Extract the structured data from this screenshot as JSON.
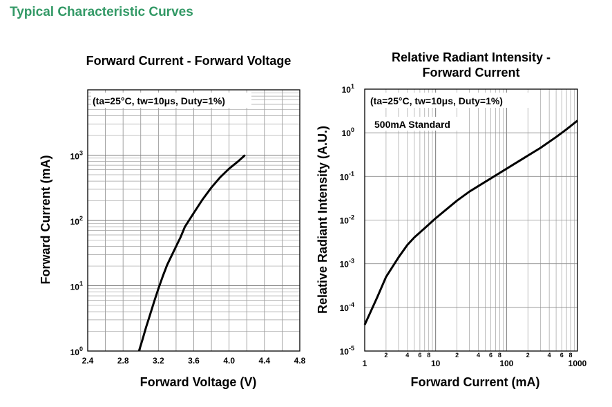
{
  "page": {
    "heading": "Typical Characteristic Curves"
  },
  "chart_data": [
    {
      "type": "line",
      "title": "Forward Current - Forward Voltage",
      "xlabel": "Forward Voltage (V)",
      "ylabel": "Forward Current (mA)",
      "xscale": "linear",
      "yscale": "log",
      "xlim": [
        2.4,
        4.8
      ],
      "ylim": [
        1,
        10000
      ],
      "xticks": [
        "2.4",
        "2.8",
        "3.2",
        "3.6",
        "4.0",
        "4.4",
        "4.8"
      ],
      "yticks": [
        {
          "base": "10",
          "exp": "0",
          "value": 1
        },
        {
          "base": "10",
          "exp": "1",
          "value": 10
        },
        {
          "base": "10",
          "exp": "2",
          "value": 100
        },
        {
          "base": "10",
          "exp": "3",
          "value": 1000
        }
      ],
      "grid": true,
      "annotation": "(ta=25°C, tw=10μs, Duty=1%)",
      "series": [
        {
          "points": [
            [
              2.98,
              1
            ],
            [
              3.02,
              1.5
            ],
            [
              3.06,
              2.3
            ],
            [
              3.1,
              3.4
            ],
            [
              3.15,
              5.6
            ],
            [
              3.2,
              9
            ],
            [
              3.25,
              14
            ],
            [
              3.3,
              21
            ],
            [
              3.35,
              29
            ],
            [
              3.4,
              40
            ],
            [
              3.45,
              55
            ],
            [
              3.5,
              80
            ],
            [
              3.6,
              130
            ],
            [
              3.7,
              210
            ],
            [
              3.8,
              320
            ],
            [
              3.9,
              460
            ],
            [
              4.0,
              620
            ],
            [
              4.1,
              800
            ],
            [
              4.18,
              1000
            ]
          ]
        }
      ]
    },
    {
      "type": "line",
      "title": "Relative Radiant Intensity -\nForward Current",
      "xlabel": "Forward Current (mA)",
      "ylabel": "Relative Radiant Intensity (A.U.)",
      "xscale": "log",
      "yscale": "log",
      "xlim": [
        1,
        1000
      ],
      "ylim": [
        1e-05,
        10
      ],
      "xticks_major": [
        "1",
        "10",
        "100",
        "1000"
      ],
      "xticks_minor": [
        "2",
        "4",
        "6",
        "8"
      ],
      "yticks": [
        {
          "base": "10",
          "exp": "-5",
          "value": 1e-05
        },
        {
          "base": "10",
          "exp": "-4",
          "value": 0.0001
        },
        {
          "base": "10",
          "exp": "-3",
          "value": 0.001
        },
        {
          "base": "10",
          "exp": "-2",
          "value": 0.01
        },
        {
          "base": "10",
          "exp": "-1",
          "value": 0.1
        },
        {
          "base": "10",
          "exp": "0",
          "value": 1
        },
        {
          "base": "10",
          "exp": "1",
          "value": 10
        }
      ],
      "grid": true,
      "annotation": "(ta=25°C, tw=10μs, Duty=1%)",
      "annotation2": "500mA Standard",
      "series": [
        {
          "points": [
            [
              1,
              4e-05
            ],
            [
              1.5,
              0.00017
            ],
            [
              2,
              0.0005
            ],
            [
              3,
              0.0014
            ],
            [
              4,
              0.0027
            ],
            [
              5,
              0.004
            ],
            [
              7,
              0.0065
            ],
            [
              10,
              0.011
            ],
            [
              20,
              0.028
            ],
            [
              30,
              0.045
            ],
            [
              50,
              0.075
            ],
            [
              100,
              0.15
            ],
            [
              200,
              0.3
            ],
            [
              300,
              0.45
            ],
            [
              500,
              0.8
            ],
            [
              700,
              1.2
            ],
            [
              1000,
              1.9
            ]
          ]
        }
      ]
    }
  ]
}
